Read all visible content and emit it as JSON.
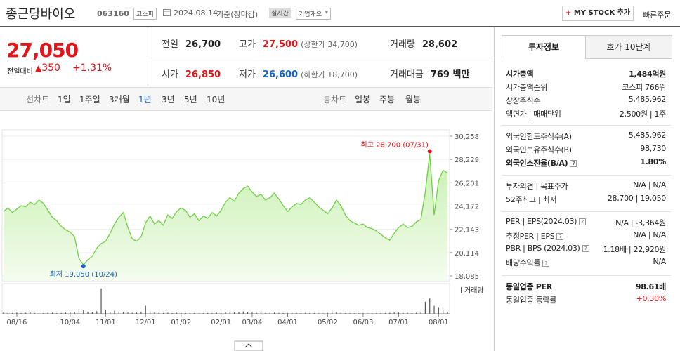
{
  "header": {
    "name": "종근당바이오",
    "code": "063160",
    "market": "코스피",
    "date": "2024.08.14",
    "basis": "기준(장마감)",
    "realtime": "실시간",
    "overview": "기업개요",
    "mystock": "MY STOCK 추가",
    "quick_order": "빠른주문"
  },
  "price": {
    "current": "27,050",
    "change_label": "전일대비",
    "change": "350",
    "change_pct": "+1.31%"
  },
  "summary": [
    [
      {
        "label": "전일",
        "value": "26,700"
      },
      {
        "label": "고가",
        "value": "27,500",
        "note": "(상한가 34,700)",
        "color": "#e0161b"
      },
      {
        "label": "거래량",
        "value": "28,602"
      }
    ],
    [
      {
        "label": "시가",
        "value": "26,850",
        "color": "#e0161b"
      },
      {
        "label": "저가",
        "value": "26,600",
        "note": "(하한가 18,700)",
        "color": "#1261c4"
      },
      {
        "label": "거래대금",
        "value": "769 백만"
      }
    ]
  ],
  "tabs": {
    "line_chart": "선차트",
    "line_periods": [
      "1일",
      "1주일",
      "3개월",
      "1년",
      "3년",
      "5년",
      "10년"
    ],
    "selected": 3,
    "candle_chart": "봉차트",
    "candle_periods": [
      "일봉",
      "주봉",
      "월봉"
    ]
  },
  "chart": {
    "type": "line",
    "color": "#6fcf45",
    "categories": [
      null,
      null,
      null,
      "08/16",
      null,
      null,
      null,
      null,
      null,
      null,
      null,
      null,
      null,
      null,
      null,
      "10/04",
      null,
      null,
      null,
      null,
      null,
      null,
      null,
      "11/01",
      null,
      null,
      null,
      null,
      null,
      null,
      null,
      null,
      "12/01",
      null,
      null,
      null,
      null,
      null,
      null,
      null,
      "01/02",
      null,
      null,
      null,
      null,
      null,
      null,
      null,
      null,
      "02/01",
      null,
      null,
      null,
      null,
      null,
      null,
      "03/04",
      null,
      null,
      null,
      null,
      null,
      null,
      null,
      "04/01",
      null,
      null,
      null,
      null,
      null,
      null,
      null,
      null,
      "05/02",
      null,
      null,
      null,
      null,
      null,
      null,
      null,
      "06/03",
      null,
      null,
      null,
      null,
      null,
      null,
      null,
      "07/01",
      null,
      null,
      null,
      null,
      null,
      null,
      null,
      null,
      "08/01",
      null,
      null
    ],
    "values": [
      23700,
      24000,
      23600,
      23900,
      24200,
      24100,
      24500,
      24300,
      24700,
      24400,
      23800,
      23200,
      22900,
      22400,
      22100,
      21900,
      21500,
      19600,
      19050,
      19500,
      19800,
      20500,
      20900,
      21100,
      21800,
      22600,
      23200,
      23600,
      22300,
      21300,
      21100,
      21500,
      22700,
      23300,
      22600,
      22900,
      22500,
      23400,
      23100,
      23700,
      24000,
      23800,
      23200,
      23500,
      22900,
      23300,
      23100,
      23600,
      23300,
      23800,
      24500,
      24900,
      24600,
      25300,
      25700,
      25900,
      25400,
      25000,
      25200,
      24700,
      24900,
      25300,
      24800,
      24200,
      23700,
      24100,
      24400,
      24300,
      24700,
      24900,
      24500,
      24100,
      23800,
      23500,
      24000,
      24700,
      24200,
      23400,
      22900,
      22700,
      22500,
      22600,
      22300,
      22200,
      22000,
      21700,
      21400,
      21200,
      21800,
      22300,
      22600,
      22300,
      22400,
      22800,
      23000,
      25400,
      28700,
      23400,
      26400,
      27300,
      27050
    ],
    "ylim": [
      18085,
      30258
    ],
    "yticks": [
      {
        "value": 30258,
        "label": "30,258"
      },
      {
        "value": 28229,
        "label": "28,229"
      },
      {
        "value": 26201,
        "label": "26,201"
      },
      {
        "value": 24172,
        "label": "24,172"
      },
      {
        "value": 22143,
        "label": "22,143"
      },
      {
        "value": 20114,
        "label": "20,114"
      },
      {
        "value": 18085,
        "label": "18,085"
      }
    ],
    "grid": true,
    "high_label": "최고 28,700 (07/31)",
    "low_label": "최저 19,050 (10/24)",
    "volume": {
      "label": "거래량",
      "color": "#555555",
      "ylim": [
        0,
        400000
      ],
      "values": [
        20000,
        15000,
        12000,
        18000,
        10000,
        14000,
        22000,
        12000,
        9000,
        11000,
        13000,
        16000,
        10000,
        12000,
        18000,
        25000,
        30000,
        70000,
        55000,
        30000,
        25000,
        40000,
        380000,
        60000,
        30000,
        45000,
        35000,
        28000,
        20000,
        15000,
        18000,
        30000,
        120000,
        40000,
        20000,
        15000,
        12000,
        16000,
        10000,
        14000,
        12000,
        10000,
        9000,
        11000,
        8000,
        10000,
        12000,
        9000,
        15000,
        11000,
        25000,
        30000,
        20000,
        28000,
        35000,
        22000,
        18000,
        15000,
        20000,
        12000,
        14000,
        18000,
        12000,
        10000,
        9000,
        11000,
        13000,
        10000,
        15000,
        12000,
        10000,
        9000,
        8000,
        12000,
        20000,
        25000,
        15000,
        10000,
        9000,
        8000,
        9000,
        10000,
        8000,
        7000,
        9000,
        10000,
        12000,
        15000,
        20000,
        18000,
        12000,
        14000,
        10000,
        16000,
        20000,
        180000,
        230000,
        120000,
        90000,
        60000,
        28602
      ]
    }
  },
  "info": {
    "tabs": [
      "투자정보",
      "호가 10단계"
    ],
    "groups": [
      [
        {
          "label": "시가총액",
          "value": "1,484억원",
          "bold": true
        },
        {
          "label": "시가총액순위",
          "value": "코스피 766위"
        },
        {
          "label": "상장주식수",
          "value": "5,485,962"
        },
        {
          "label": "액면가 | 매매단위",
          "value": "2,500원 | 1주"
        }
      ],
      [
        {
          "label": "외국인한도주식수(A)",
          "value": "5,485,962"
        },
        {
          "label": "외국인보유주식수(B)",
          "value": "98,730"
        },
        {
          "label": "외국인소진율(B/A)",
          "value": "1.80%",
          "bold": true,
          "help": true
        }
      ],
      [
        {
          "label": "투자의견 | 목표주가",
          "value": "N/A | N/A"
        },
        {
          "label": "52주최고 | 최저",
          "value": "28,700 | 19,050"
        }
      ],
      [
        {
          "label": "PER | EPS(2024.03)",
          "value": "N/A | -3,364원",
          "help": true
        },
        {
          "label": "추정PER | EPS",
          "value": "N/A | N/A",
          "help": true
        },
        {
          "label": "PBR | BPS (2024.03)",
          "value": "1.18배 | 22,920원",
          "help": true
        },
        {
          "label": "배당수익률",
          "value": "N/A",
          "help": true
        }
      ],
      [
        {
          "label": "동일업종 PER",
          "value": "98.61배",
          "bold": true
        },
        {
          "label": "동일업종 등락률",
          "value": "+0.30%",
          "color": "#e0161b"
        }
      ]
    ]
  }
}
